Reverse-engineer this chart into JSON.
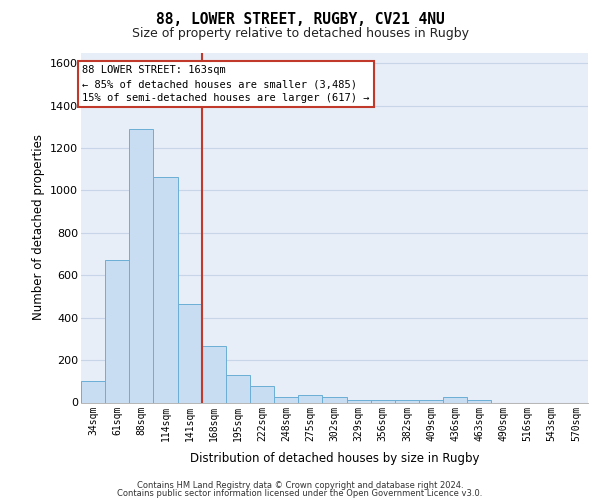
{
  "title_line1": "88, LOWER STREET, RUGBY, CV21 4NU",
  "title_line2": "Size of property relative to detached houses in Rugby",
  "xlabel": "Distribution of detached houses by size in Rugby",
  "ylabel": "Number of detached properties",
  "categories": [
    "34sqm",
    "61sqm",
    "88sqm",
    "114sqm",
    "141sqm",
    "168sqm",
    "195sqm",
    "222sqm",
    "248sqm",
    "275sqm",
    "302sqm",
    "329sqm",
    "356sqm",
    "382sqm",
    "409sqm",
    "436sqm",
    "463sqm",
    "490sqm",
    "516sqm",
    "543sqm",
    "570sqm"
  ],
  "values": [
    100,
    670,
    1290,
    1065,
    465,
    265,
    130,
    78,
    28,
    35,
    25,
    10,
    10,
    10,
    10,
    25,
    10,
    0,
    0,
    0,
    0
  ],
  "bar_color": "#c9ddf2",
  "bar_edge_color": "#6baed6",
  "annotation_line1": "88 LOWER STREET: 163sqm",
  "annotation_line2": "← 85% of detached houses are smaller (3,485)",
  "annotation_line3": "15% of semi-detached houses are larger (617) →",
  "vline_color": "#c0392b",
  "annotation_box_edge_color": "#c0392b",
  "ylim": [
    0,
    1650
  ],
  "yticks": [
    0,
    200,
    400,
    600,
    800,
    1000,
    1200,
    1400,
    1600
  ],
  "grid_color": "#c8d4e8",
  "background_color": "#e8eef8",
  "footer_line1": "Contains HM Land Registry data © Crown copyright and database right 2024.",
  "footer_line2": "Contains public sector information licensed under the Open Government Licence v3.0."
}
